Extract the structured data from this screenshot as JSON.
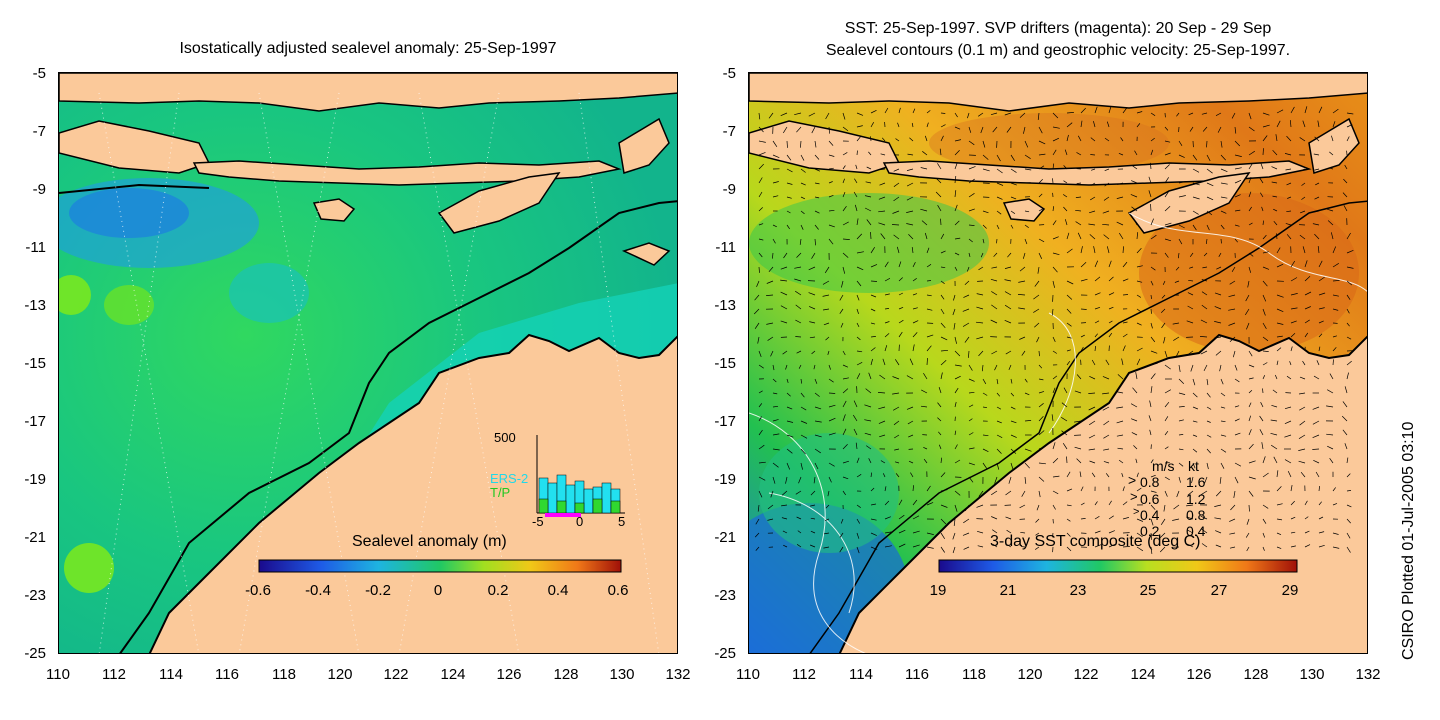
{
  "left_panel": {
    "title": "Isostatically adjusted sealevel anomaly: 25-Sep-1997",
    "y_ticks": [
      "-5",
      "-7",
      "-9",
      "-11",
      "-13",
      "-15",
      "-17",
      "-19",
      "-21",
      "-23",
      "-25"
    ],
    "x_ticks": [
      "110",
      "112",
      "114",
      "116",
      "118",
      "120",
      "122",
      "124",
      "126",
      "128",
      "130",
      "132"
    ],
    "colorbar": {
      "label": "Sealevel anomaly (m)",
      "ticks": [
        "-0.6",
        "-0.4",
        "-0.2",
        "0",
        "0.2",
        "0.4",
        "0.6"
      ]
    },
    "inset": {
      "y_label": "500",
      "legend": [
        "ERS-2",
        "T/P"
      ],
      "x_ticks": [
        "-5",
        "0",
        "5"
      ]
    }
  },
  "right_panel": {
    "title_line1": "SST: 25-Sep-1997. SVP drifters (magenta): 20 Sep - 29 Sep",
    "title_line2": "Sealevel contours (0.1 m) and geostrophic velocity: 25-Sep-1997.",
    "y_ticks": [
      "-5",
      "-7",
      "-9",
      "-11",
      "-13",
      "-15",
      "-17",
      "-19",
      "-21",
      "-23",
      "-25"
    ],
    "x_ticks": [
      "110",
      "112",
      "114",
      "116",
      "118",
      "120",
      "122",
      "124",
      "126",
      "128",
      "130",
      "132"
    ],
    "colorbar": {
      "label": "3-day SST composite (deg C)",
      "ticks": [
        "19",
        "21",
        "23",
        "25",
        "27",
        "29"
      ]
    },
    "velocity_legend": {
      "header_ms": "m/s",
      "header_kt": "kt",
      "rows": [
        {
          "ms": "0.8",
          "kt": "1.6"
        },
        {
          "ms": "0.6",
          "kt": "1.2"
        },
        {
          "ms": "0.4",
          "kt": "0.8"
        },
        {
          "ms": "0.2",
          "kt": "0.4"
        }
      ]
    }
  },
  "credit": "CSIRO Plotted 01-Jul-2005 03:10",
  "colors": {
    "land": "#fbc99a",
    "ocean_left": "#14c88c",
    "ocean_left_shelf": "#0fd2b4",
    "ocean_right_warm": "#e8901a",
    "ocean_right_mid": "#c8d81e"
  }
}
